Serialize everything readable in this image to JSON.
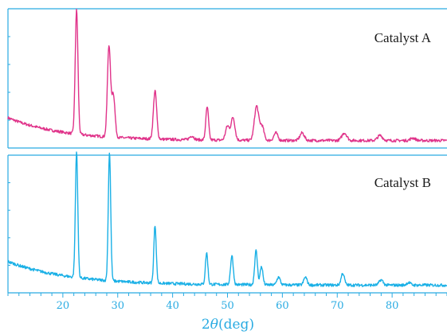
{
  "chart_data": {
    "type": "line",
    "xlabel_prefix": "2",
    "xlabel_symbol": "θ",
    "xlabel_unit": "(deg)",
    "xlim": [
      10,
      90
    ],
    "x_ticks": [
      20,
      30,
      40,
      50,
      60,
      70,
      80
    ],
    "x_minor_step": 2,
    "grid": false,
    "panels": [
      {
        "label": "Catalyst A",
        "color": "#e0338a",
        "ylim": [
          0,
          100
        ],
        "baseline": {
          "start": 22,
          "tail": 4,
          "decay": 0.1
        },
        "peaks": [
          {
            "x": 22.5,
            "height": 98,
            "width": 0.25
          },
          {
            "x": 28.4,
            "height": 72,
            "width": 0.28
          },
          {
            "x": 29.2,
            "height": 34,
            "width": 0.3
          },
          {
            "x": 36.8,
            "height": 38,
            "width": 0.3
          },
          {
            "x": 43.5,
            "height": 3,
            "width": 0.4
          },
          {
            "x": 46.3,
            "height": 26,
            "width": 0.25
          },
          {
            "x": 50.0,
            "height": 11,
            "width": 0.35
          },
          {
            "x": 51.0,
            "height": 18,
            "width": 0.35
          },
          {
            "x": 55.3,
            "height": 27,
            "width": 0.4
          },
          {
            "x": 56.3,
            "height": 11,
            "width": 0.35
          },
          {
            "x": 58.8,
            "height": 6,
            "width": 0.35
          },
          {
            "x": 63.6,
            "height": 6,
            "width": 0.4
          },
          {
            "x": 71.3,
            "height": 6,
            "width": 0.45
          },
          {
            "x": 77.8,
            "height": 4,
            "width": 0.45
          },
          {
            "x": 83.8,
            "height": 2,
            "width": 0.45
          }
        ]
      },
      {
        "label": "Catalyst B",
        "color": "#1ab0e6",
        "ylim": [
          0,
          100
        ],
        "baseline": {
          "start": 22,
          "tail": 4,
          "decay": 0.09
        },
        "peaks": [
          {
            "x": 22.5,
            "height": 96,
            "width": 0.22
          },
          {
            "x": 28.5,
            "height": 98,
            "width": 0.22
          },
          {
            "x": 36.8,
            "height": 44,
            "width": 0.22
          },
          {
            "x": 46.2,
            "height": 24,
            "width": 0.22
          },
          {
            "x": 50.8,
            "height": 22,
            "width": 0.25
          },
          {
            "x": 55.2,
            "height": 26,
            "width": 0.25
          },
          {
            "x": 56.2,
            "height": 14,
            "width": 0.25
          },
          {
            "x": 59.3,
            "height": 6,
            "width": 0.3
          },
          {
            "x": 64.2,
            "height": 6,
            "width": 0.3
          },
          {
            "x": 71.0,
            "height": 9,
            "width": 0.3
          },
          {
            "x": 78.0,
            "height": 4,
            "width": 0.35
          },
          {
            "x": 83.0,
            "height": 2,
            "width": 0.35
          }
        ]
      }
    ]
  }
}
